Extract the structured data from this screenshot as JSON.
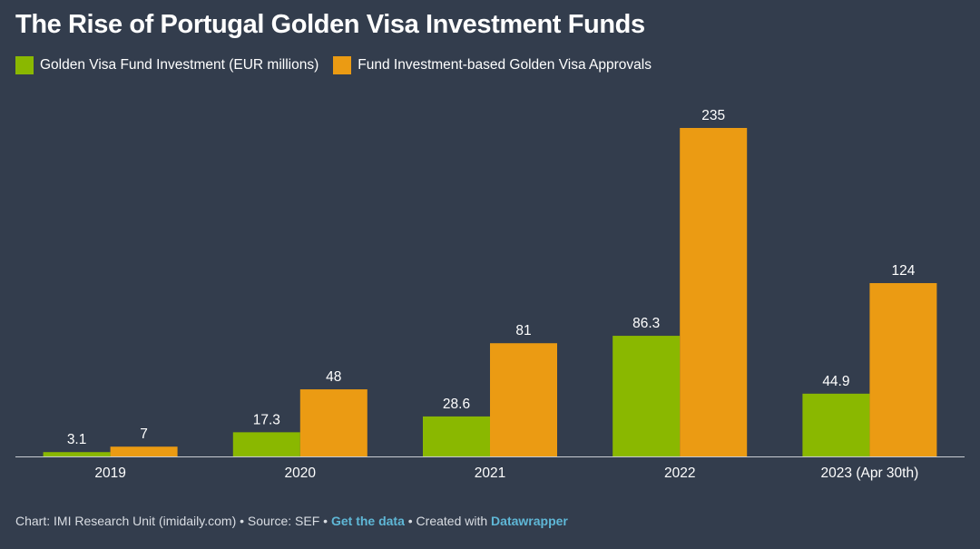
{
  "chart_data": {
    "type": "bar",
    "title": "The Rise of Portugal Golden Visa Investment Funds",
    "categories": [
      "2019",
      "2020",
      "2021",
      "2022",
      "2023 (Apr 30th)"
    ],
    "series": [
      {
        "name": "Golden Visa Fund Investment (EUR millions)",
        "color": "#8ab800",
        "values": [
          3.1,
          17.3,
          28.6,
          86.3,
          44.9
        ],
        "labels": [
          "3.1",
          "17.3",
          "28.6",
          "86.3",
          "44.9"
        ]
      },
      {
        "name": "Fund Investment-based Golden Visa Approvals",
        "color": "#eb9b13",
        "values": [
          7,
          48,
          81,
          235,
          124
        ],
        "labels": [
          "7",
          "48",
          "81",
          "235",
          "124"
        ]
      }
    ],
    "ylim": [
      0,
      235
    ],
    "xlabel": "",
    "ylabel": "",
    "grid": false,
    "legend_position": "top-left"
  },
  "footer": {
    "prefix": "Chart: IMI Research Unit (imidaily.com) • Source: SEF •",
    "get_data": "Get the data",
    "created_with": "• Created with",
    "datawrapper": "Datawrapper"
  },
  "colors": {
    "background": "#333d4d",
    "axis": "#c8ccd2",
    "text": "#ffffff"
  }
}
